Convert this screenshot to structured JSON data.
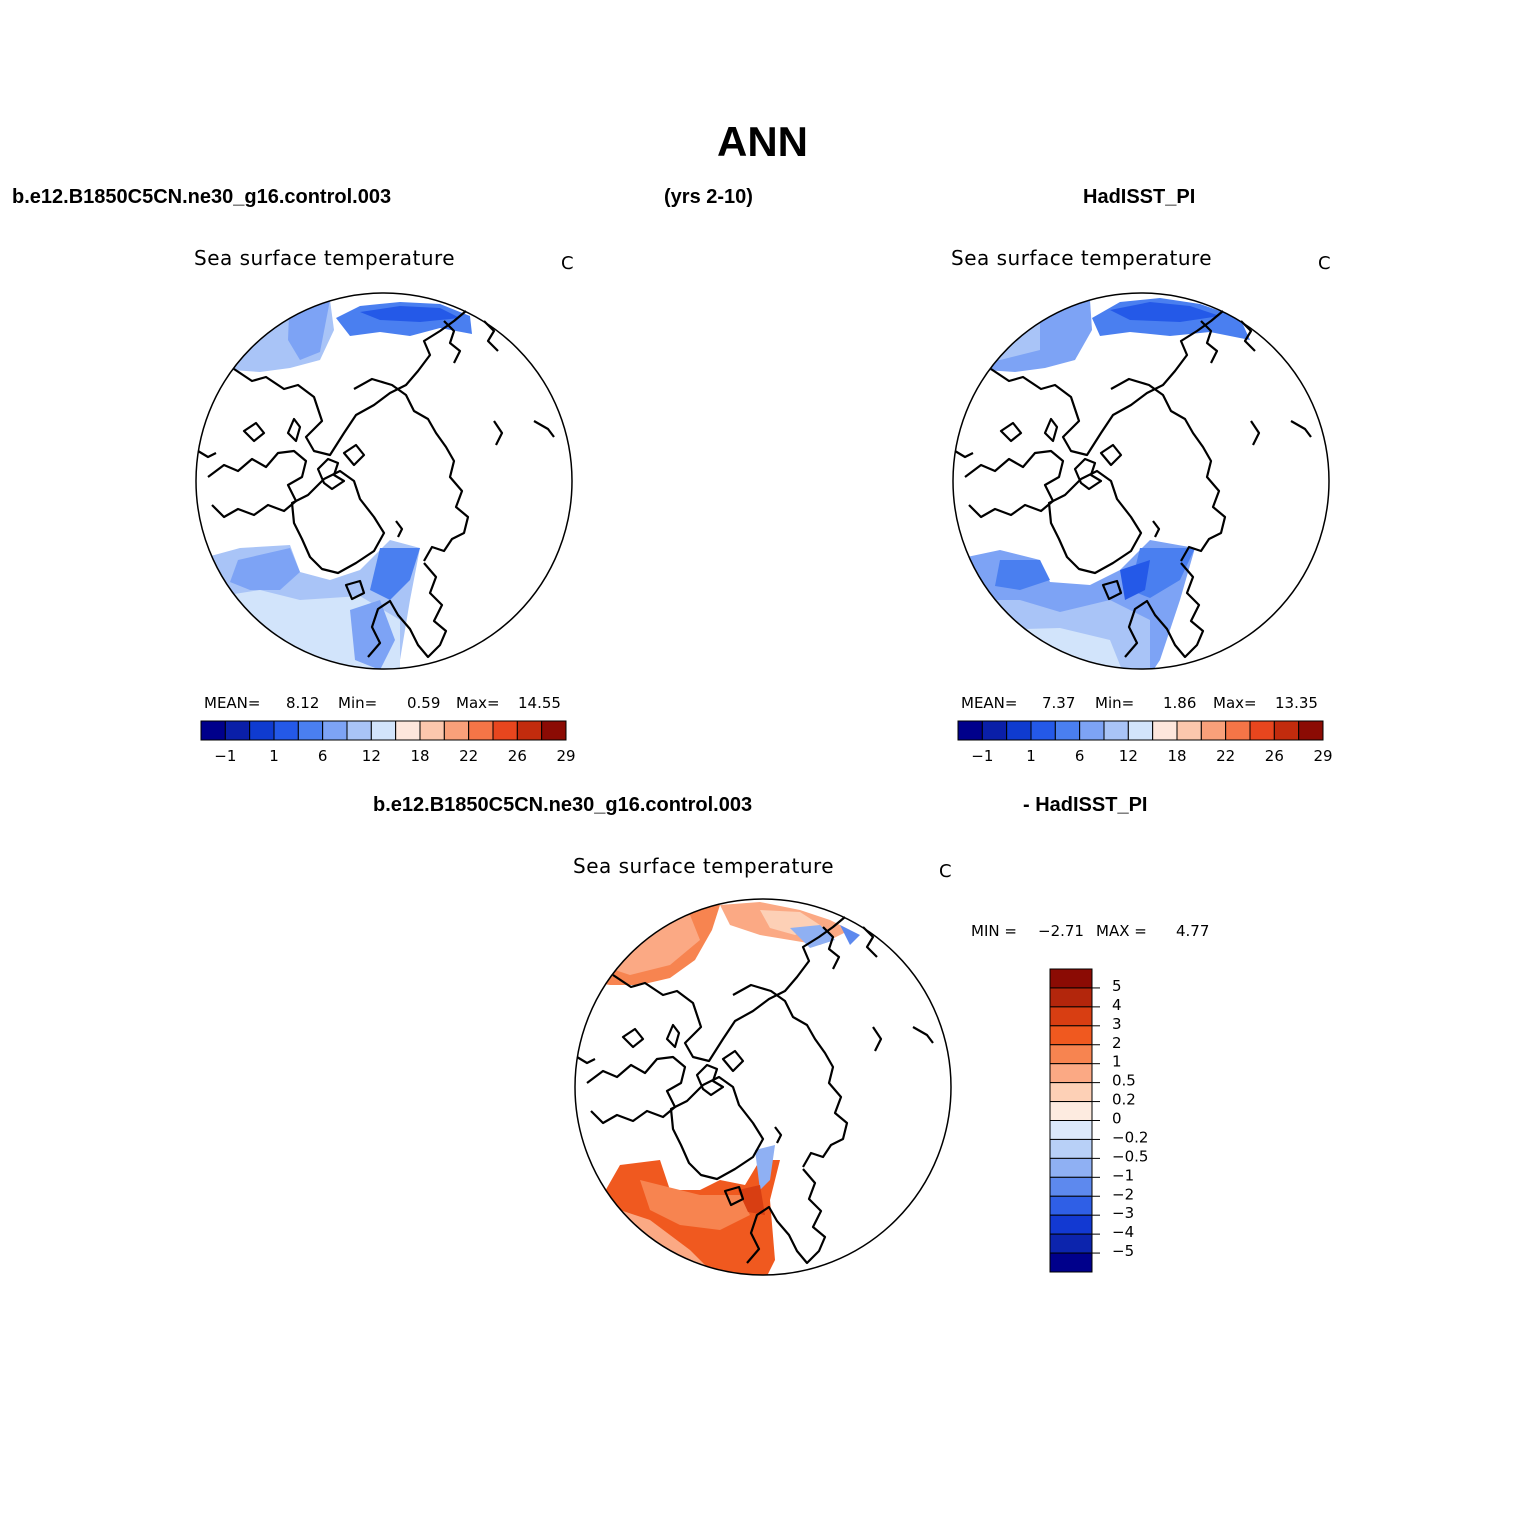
{
  "title": "ANN",
  "header": {
    "left": "b.e12.B1850C5CN.ne30_g16.control.003",
    "center": "(yrs 2-10)",
    "right": "HadISST_PI"
  },
  "panels": [
    {
      "title": "Sea surface temperature",
      "unit": "C",
      "stats": {
        "mean_label": "MEAN=",
        "mean": "8.12",
        "min_label": "Min=",
        "min": "0.59",
        "max_label": "Max=",
        "max": "14.55"
      },
      "colorbar_labels": [
        "−1",
        "1",
        "6",
        "12",
        "18",
        "22",
        "26",
        "29"
      ]
    },
    {
      "title": "Sea surface temperature",
      "unit": "C",
      "stats": {
        "mean_label": "MEAN=",
        "mean": "7.37",
        "min_label": "Min=",
        "min": "1.86",
        "max_label": "Max=",
        "max": "13.35"
      },
      "colorbar_labels": [
        "−1",
        "1",
        "6",
        "12",
        "18",
        "22",
        "26",
        "29"
      ]
    }
  ],
  "diff": {
    "left_header": "b.e12.B1850C5CN.ne30_g16.control.003",
    "right_header": "- HadISST_PI",
    "title": "Sea surface temperature",
    "unit": "C",
    "min_label": "MIN =",
    "min": "−2.71",
    "max_label": "MAX =",
    "max": "4.77",
    "colorbar_labels": [
      "5",
      "4",
      "3",
      "2",
      "1",
      "0.5",
      "0.2",
      "0",
      "−0.2",
      "−0.5",
      "−1",
      "−2",
      "−3",
      "−4",
      "−5"
    ]
  },
  "colors": {
    "sst_scale": [
      "#00008b",
      "#0a1fa8",
      "#0f3bd0",
      "#2459e8",
      "#4a7ff0",
      "#7da3f5",
      "#a9c4f7",
      "#d2e4fb",
      "#fde6dc",
      "#fcc7ad",
      "#f9a07a",
      "#f57547",
      "#e8461e",
      "#c22b0d",
      "#8b0b04"
    ],
    "diff_scale": [
      "#8b0b04",
      "#b3260c",
      "#d83e12",
      "#f0591f",
      "#f78450",
      "#fba984",
      "#fdd0b6",
      "#fdebe0",
      "#dce9fb",
      "#b8d0f7",
      "#8fb0f3",
      "#5d89ee",
      "#2f5fe6",
      "#1239d2",
      "#0c24ad",
      "#00008b"
    ]
  }
}
